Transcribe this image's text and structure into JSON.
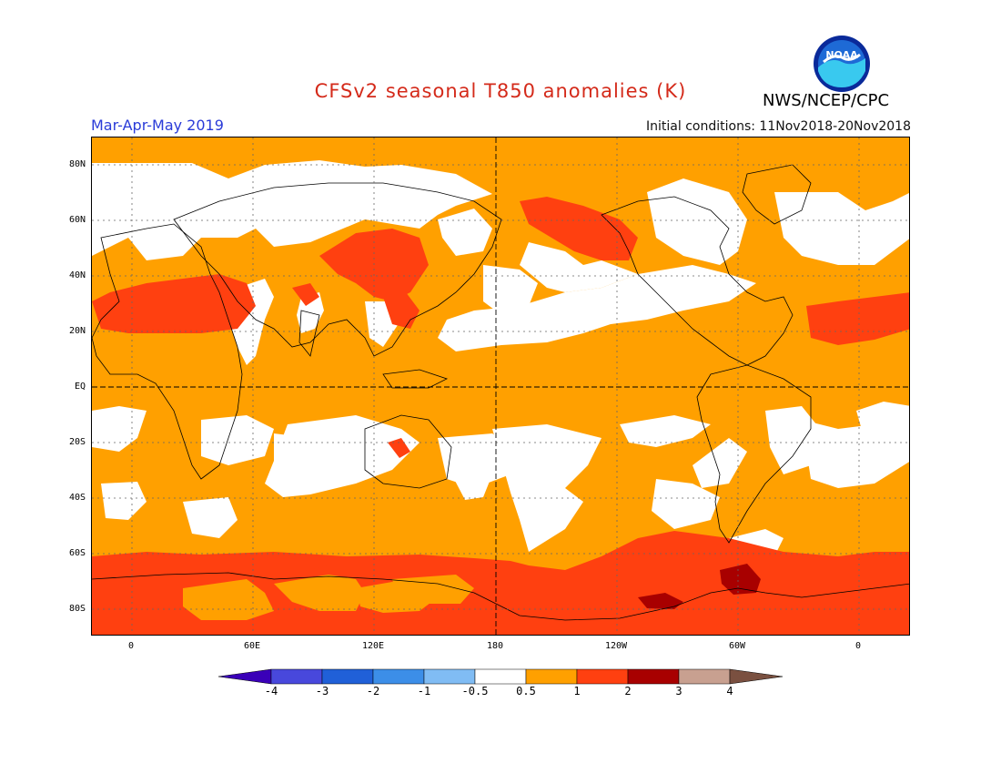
{
  "header": {
    "title": "CFSv2 seasonal T850 anomalies (K)",
    "period": "Mar-Apr-May 2019",
    "initial_conditions": "Initial conditions: 11Nov2018-20Nov2018",
    "agency": "NWS/NCEP/CPC",
    "logo_text": "NOAA"
  },
  "colors": {
    "title": "#d42a1a",
    "period": "#2a3bd8",
    "anomaly_0_5_to_1": "#ffa000",
    "anomaly_1_to_2": "#ff4010",
    "anomaly_2_to_3": "#a80000",
    "anomaly_neutral": "#ffffff"
  },
  "map": {
    "lat_labels": [
      "80N",
      "60N",
      "40N",
      "20N",
      "EQ",
      "20S",
      "40S",
      "60S",
      "80S"
    ],
    "lon_labels": [
      "0",
      "60E",
      "120E",
      "180",
      "120W",
      "60W",
      "0"
    ]
  },
  "colorbar": {
    "labels": [
      "-4",
      "-3",
      "-2",
      "-1",
      "-0.5",
      "0.5",
      "1",
      "2",
      "3",
      "4"
    ],
    "colors": [
      "#3a00b8",
      "#4848dc",
      "#2060d8",
      "#3c8ee8",
      "#80bcf4",
      "#ffffff",
      "#ffa000",
      "#ff4010",
      "#a80000",
      "#c8a090",
      "#7a5040"
    ]
  }
}
